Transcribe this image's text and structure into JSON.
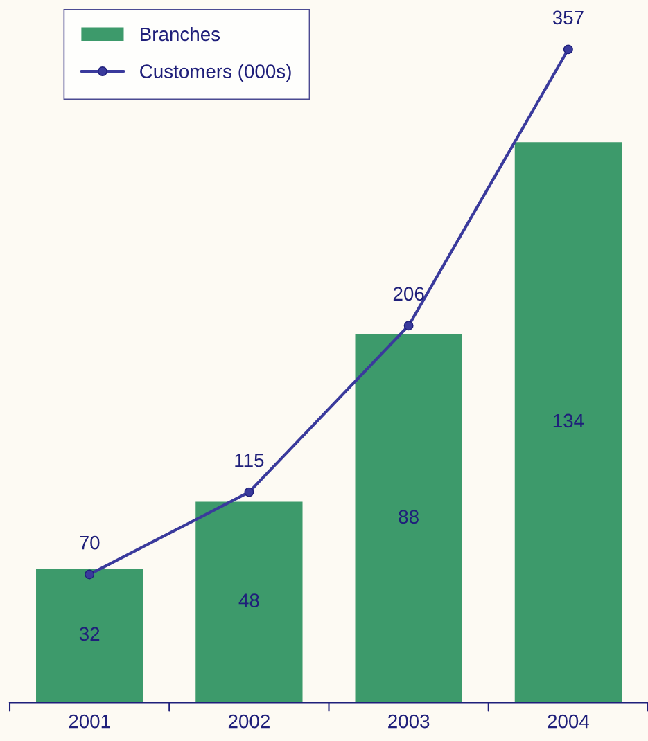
{
  "chart_data": {
    "type": "bar",
    "categories": [
      "2001",
      "2002",
      "2003",
      "2004"
    ],
    "series": [
      {
        "name": "Branches",
        "color": "#3d9a6b",
        "values": [
          32,
          48,
          88,
          134
        ]
      },
      {
        "name": "Customers (000s)",
        "type": "line",
        "axis": "y2",
        "color": "#3a3a9c",
        "marker": "circle",
        "line_style": "solid",
        "values": [
          70,
          115,
          206,
          357
        ]
      }
    ],
    "ylim": [
      0,
      168
    ],
    "y2lim": [
      0,
      384
    ],
    "data_labels": true,
    "tick_labels": "x",
    "grid": false,
    "legend": "top left"
  }
}
